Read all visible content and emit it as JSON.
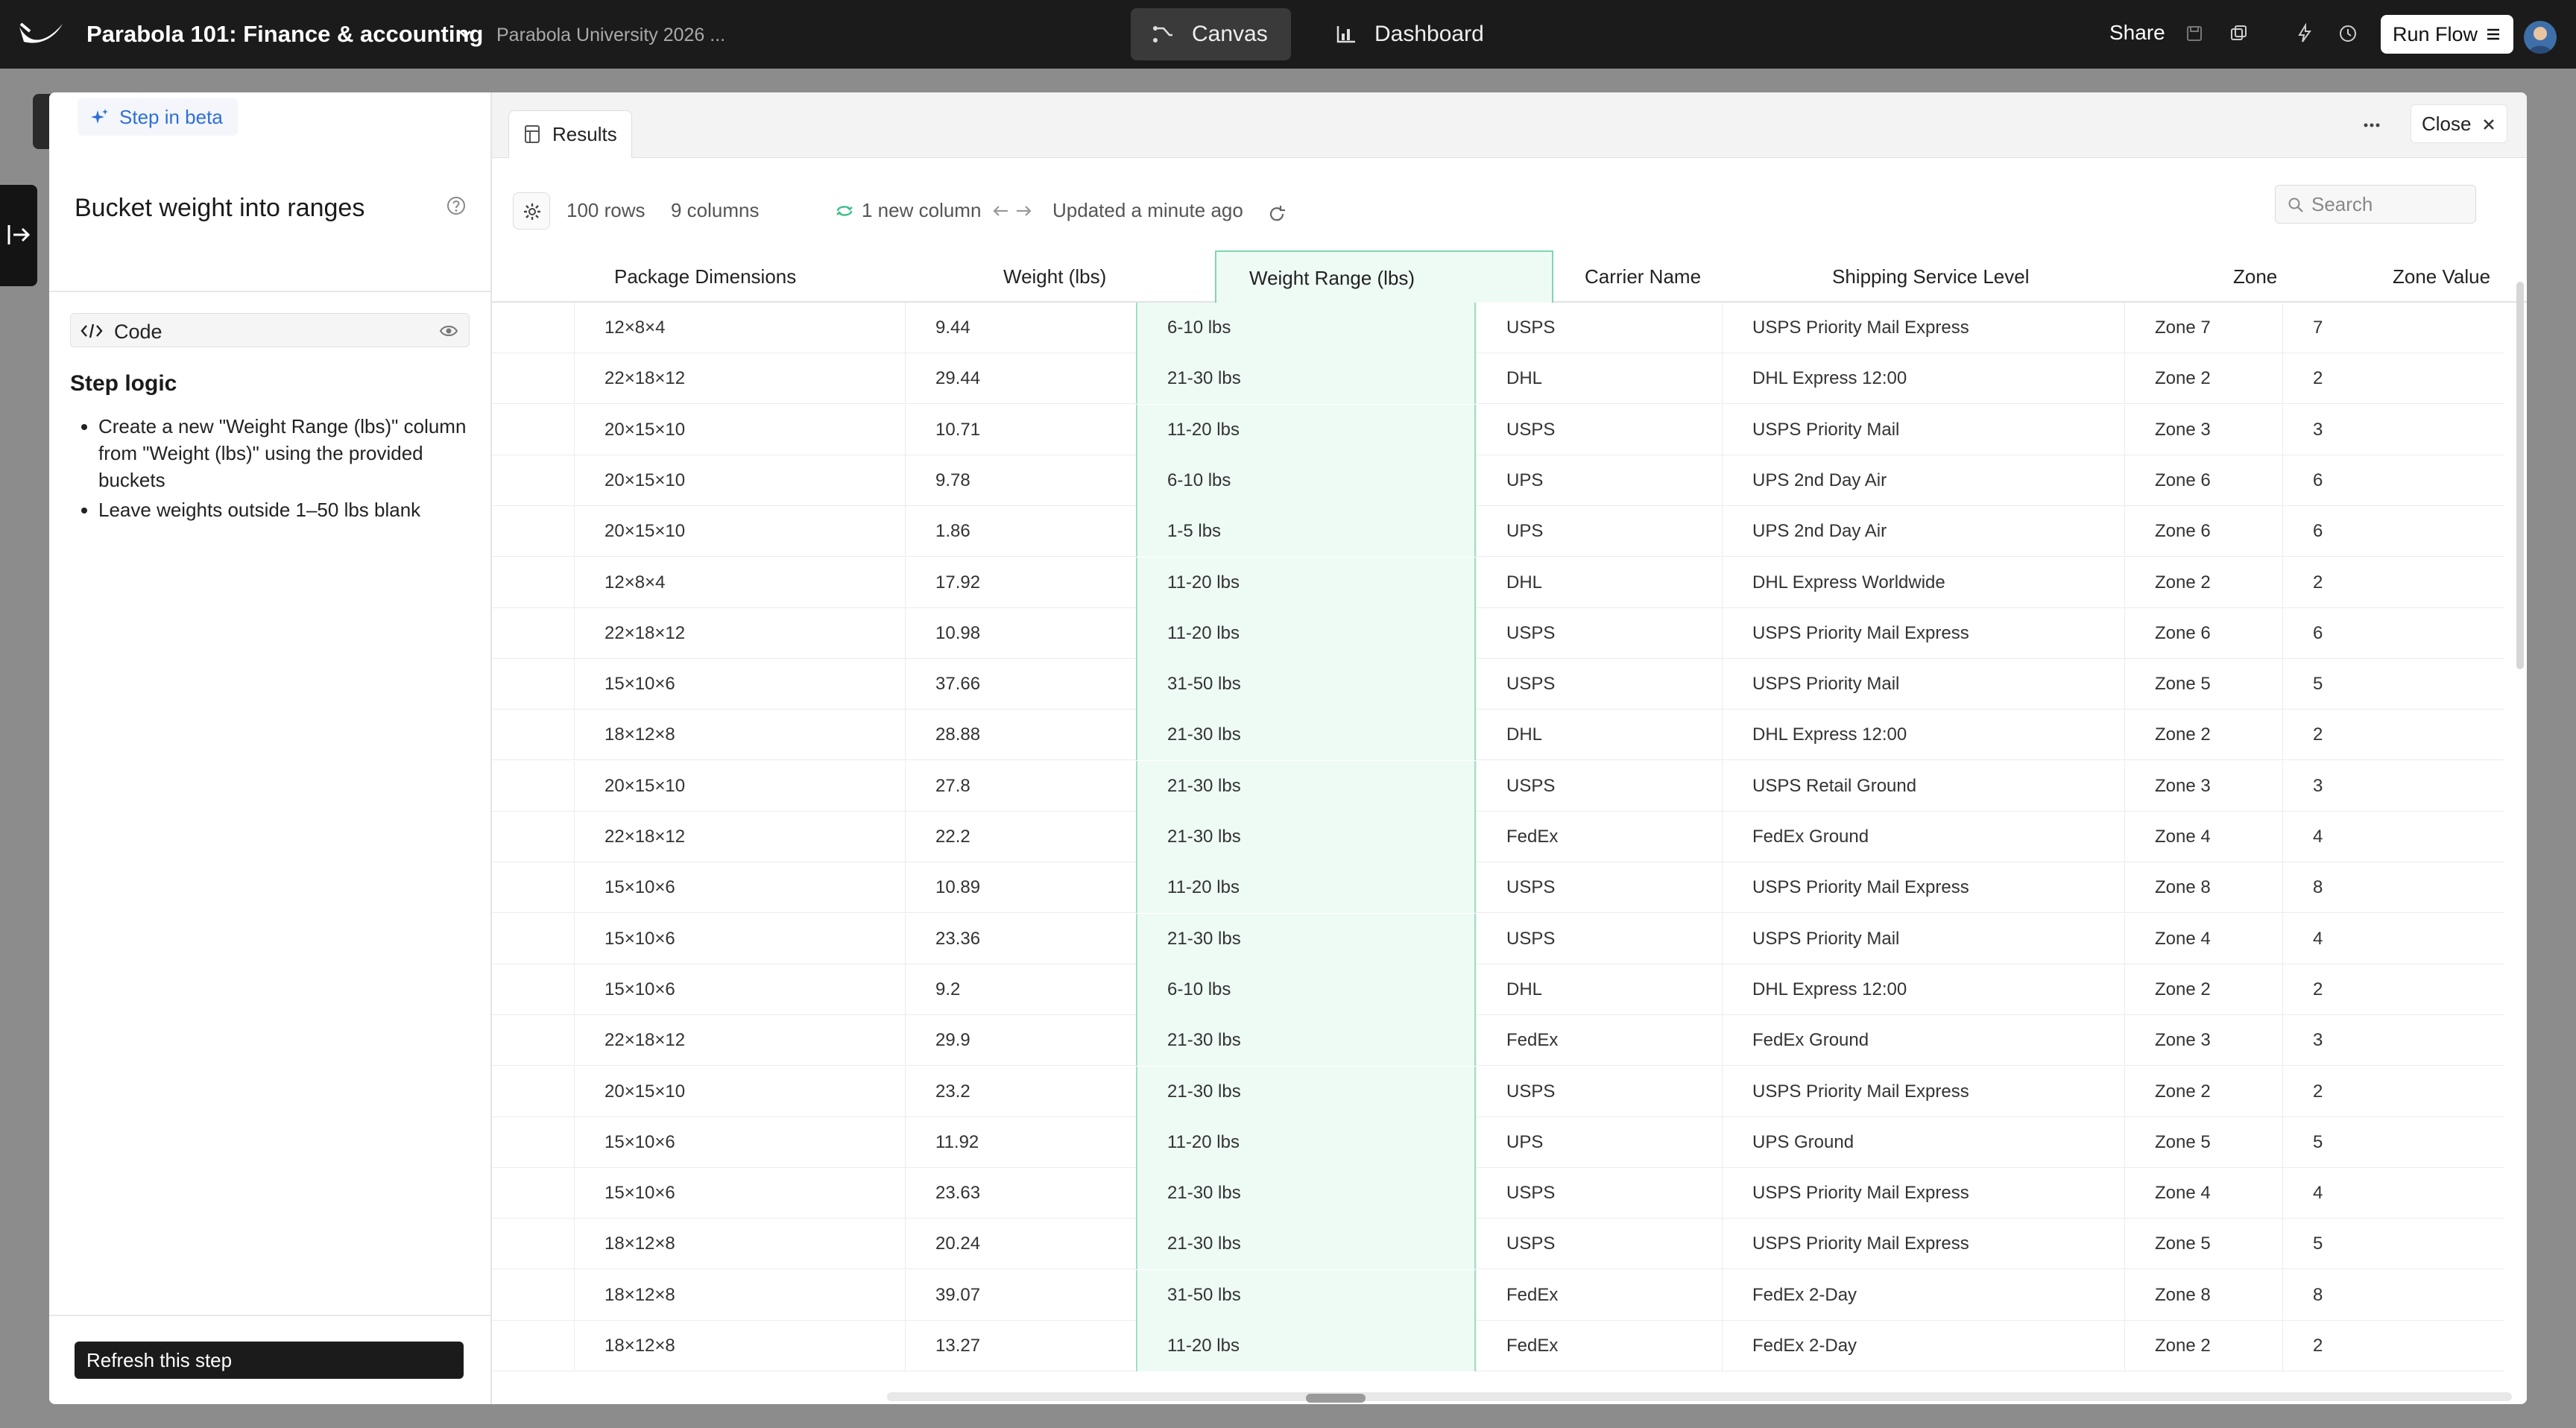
{
  "topbar": {
    "title": "Parabola 101: Finance & accounting",
    "breadcrumb": "Parabola University 2026 ...",
    "canvas_label": "Canvas",
    "dashboard_label": "Dashboard",
    "share_label": "Share",
    "run_flow_label": "Run Flow"
  },
  "step": {
    "beta_label": "Step in beta",
    "title": "Bucket weight into ranges",
    "code_label": "Code",
    "logic_heading": "Step logic",
    "logic_items": [
      "Create a new \"Weight Range (lbs)\" column from \"Weight (lbs)\" using the provided buckets",
      "Leave weights outside 1–50 lbs blank"
    ],
    "refresh_label": "Refresh this step"
  },
  "results": {
    "tab_label": "Results",
    "close_label": "Close",
    "rows_label": "100 rows",
    "columns_label": "9 columns",
    "new_column_label": "1 new column",
    "updated_label": "Updated a minute ago",
    "search_placeholder": "Search"
  },
  "table": {
    "headers": [
      "Package Dimensions",
      "Weight (lbs)",
      "Weight Range (lbs)",
      "Carrier Name",
      "Shipping Service Level",
      "Zone",
      "Zone Value"
    ],
    "rows": [
      [
        "12×8×4",
        "9.44",
        "6-10 lbs",
        "USPS",
        "USPS Priority Mail Express",
        "Zone 7",
        "7"
      ],
      [
        "22×18×12",
        "29.44",
        "21-30 lbs",
        "DHL",
        "DHL Express 12:00",
        "Zone 2",
        "2"
      ],
      [
        "20×15×10",
        "10.71",
        "11-20 lbs",
        "USPS",
        "USPS Priority Mail",
        "Zone 3",
        "3"
      ],
      [
        "20×15×10",
        "9.78",
        "6-10 lbs",
        "UPS",
        "UPS 2nd Day Air",
        "Zone 6",
        "6"
      ],
      [
        "20×15×10",
        "1.86",
        "1-5 lbs",
        "UPS",
        "UPS 2nd Day Air",
        "Zone 6",
        "6"
      ],
      [
        "12×8×4",
        "17.92",
        "11-20 lbs",
        "DHL",
        "DHL Express Worldwide",
        "Zone 2",
        "2"
      ],
      [
        "22×18×12",
        "10.98",
        "11-20 lbs",
        "USPS",
        "USPS Priority Mail Express",
        "Zone 6",
        "6"
      ],
      [
        "15×10×6",
        "37.66",
        "31-50 lbs",
        "USPS",
        "USPS Priority Mail",
        "Zone 5",
        "5"
      ],
      [
        "18×12×8",
        "28.88",
        "21-30 lbs",
        "DHL",
        "DHL Express 12:00",
        "Zone 2",
        "2"
      ],
      [
        "20×15×10",
        "27.8",
        "21-30 lbs",
        "USPS",
        "USPS Retail Ground",
        "Zone 3",
        "3"
      ],
      [
        "22×18×12",
        "22.2",
        "21-30 lbs",
        "FedEx",
        "FedEx Ground",
        "Zone 4",
        "4"
      ],
      [
        "15×10×6",
        "10.89",
        "11-20 lbs",
        "USPS",
        "USPS Priority Mail Express",
        "Zone 8",
        "8"
      ],
      [
        "15×10×6",
        "23.36",
        "21-30 lbs",
        "USPS",
        "USPS Priority Mail",
        "Zone 4",
        "4"
      ],
      [
        "15×10×6",
        "9.2",
        "6-10 lbs",
        "DHL",
        "DHL Express 12:00",
        "Zone 2",
        "2"
      ],
      [
        "22×18×12",
        "29.9",
        "21-30 lbs",
        "FedEx",
        "FedEx Ground",
        "Zone 3",
        "3"
      ],
      [
        "20×15×10",
        "23.2",
        "21-30 lbs",
        "USPS",
        "USPS Priority Mail Express",
        "Zone 2",
        "2"
      ],
      [
        "15×10×6",
        "11.92",
        "11-20 lbs",
        "UPS",
        "UPS Ground",
        "Zone 5",
        "5"
      ],
      [
        "15×10×6",
        "23.63",
        "21-30 lbs",
        "USPS",
        "USPS Priority Mail Express",
        "Zone 4",
        "4"
      ],
      [
        "18×12×8",
        "20.24",
        "21-30 lbs",
        "USPS",
        "USPS Priority Mail Express",
        "Zone 5",
        "5"
      ],
      [
        "18×12×8",
        "39.07",
        "31-50 lbs",
        "FedEx",
        "FedEx 2-Day",
        "Zone 8",
        "8"
      ],
      [
        "18×12×8",
        "13.27",
        "11-20 lbs",
        "FedEx",
        "FedEx 2-Day",
        "Zone 2",
        "2"
      ]
    ]
  },
  "colors": {
    "accent_blue": "#2e6fd6",
    "highlight_green": "#eefbf5",
    "highlight_border": "#7fd6ae"
  },
  "icons": [
    "parabola-logo-icon",
    "chevron-down-icon",
    "canvas-flow-icon",
    "dashboard-chart-icon",
    "save-icon",
    "copy-icon",
    "bolt-icon",
    "history-icon",
    "menu-icon",
    "sparkle-icon",
    "help-icon",
    "code-icon",
    "eye-icon",
    "table-icon",
    "more-icon",
    "close-icon",
    "gear-icon",
    "new-column-icon",
    "arrow-left-icon",
    "arrow-right-icon",
    "refresh-icon",
    "search-icon",
    "expand-panel-icon"
  ]
}
